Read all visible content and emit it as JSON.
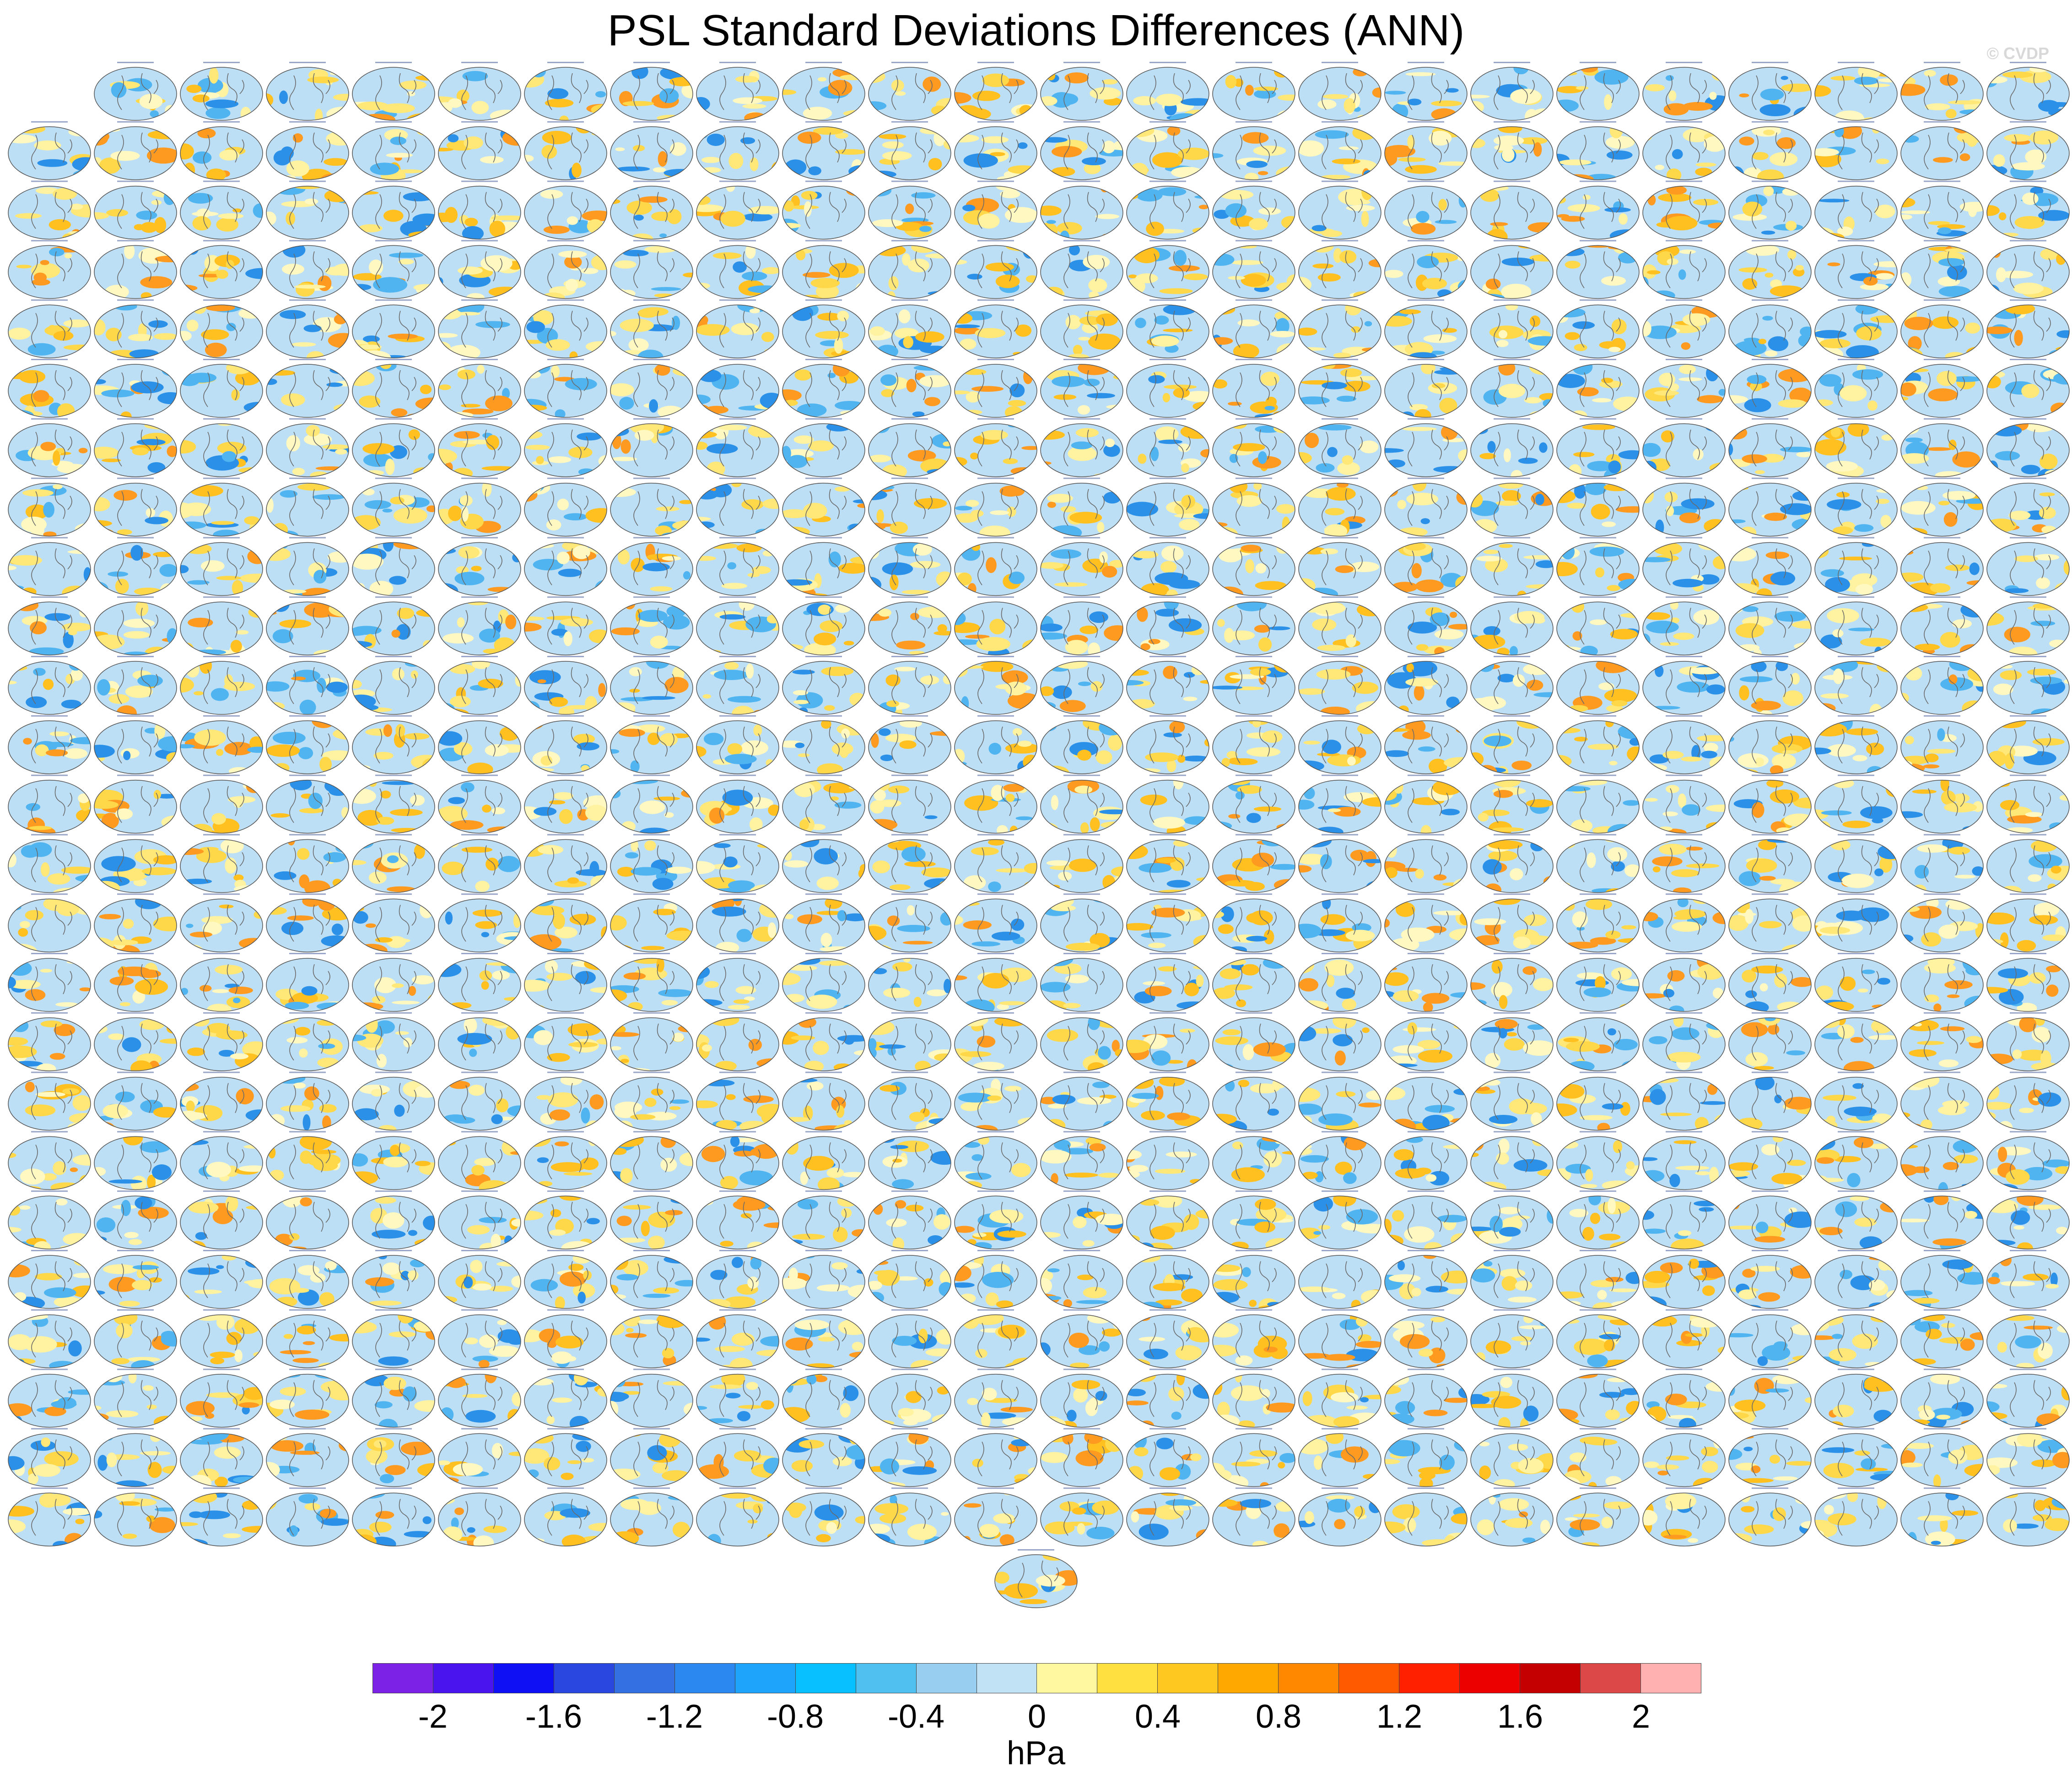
{
  "title": "PSL Standard Deviations Differences (ANN)",
  "watermark": "© CVDP",
  "panel_grid": {
    "rows": 25,
    "columns": 24,
    "first_row_panels": 23,
    "extra_bottom_panels": 1
  },
  "colorbar": {
    "colors": [
      "#7b22e6",
      "#4a14ee",
      "#1010f5",
      "#2a48e0",
      "#3470e2",
      "#2a88f0",
      "#1ea4fa",
      "#08c0ff",
      "#50c0f0",
      "#98cff0",
      "#c0e2f4",
      "#fff8a0",
      "#ffe040",
      "#ffc820",
      "#ffa800",
      "#ff8800",
      "#ff5a00",
      "#ff2000",
      "#ec0000",
      "#c40000",
      "#dc4848",
      "#ffb0b0"
    ],
    "tick_labels": [
      "-2",
      "-1.6",
      "-1.2",
      "-0.8",
      "-0.4",
      "0",
      "0.4",
      "0.8",
      "1.2",
      "1.6",
      "2"
    ],
    "units": "hPa"
  }
}
